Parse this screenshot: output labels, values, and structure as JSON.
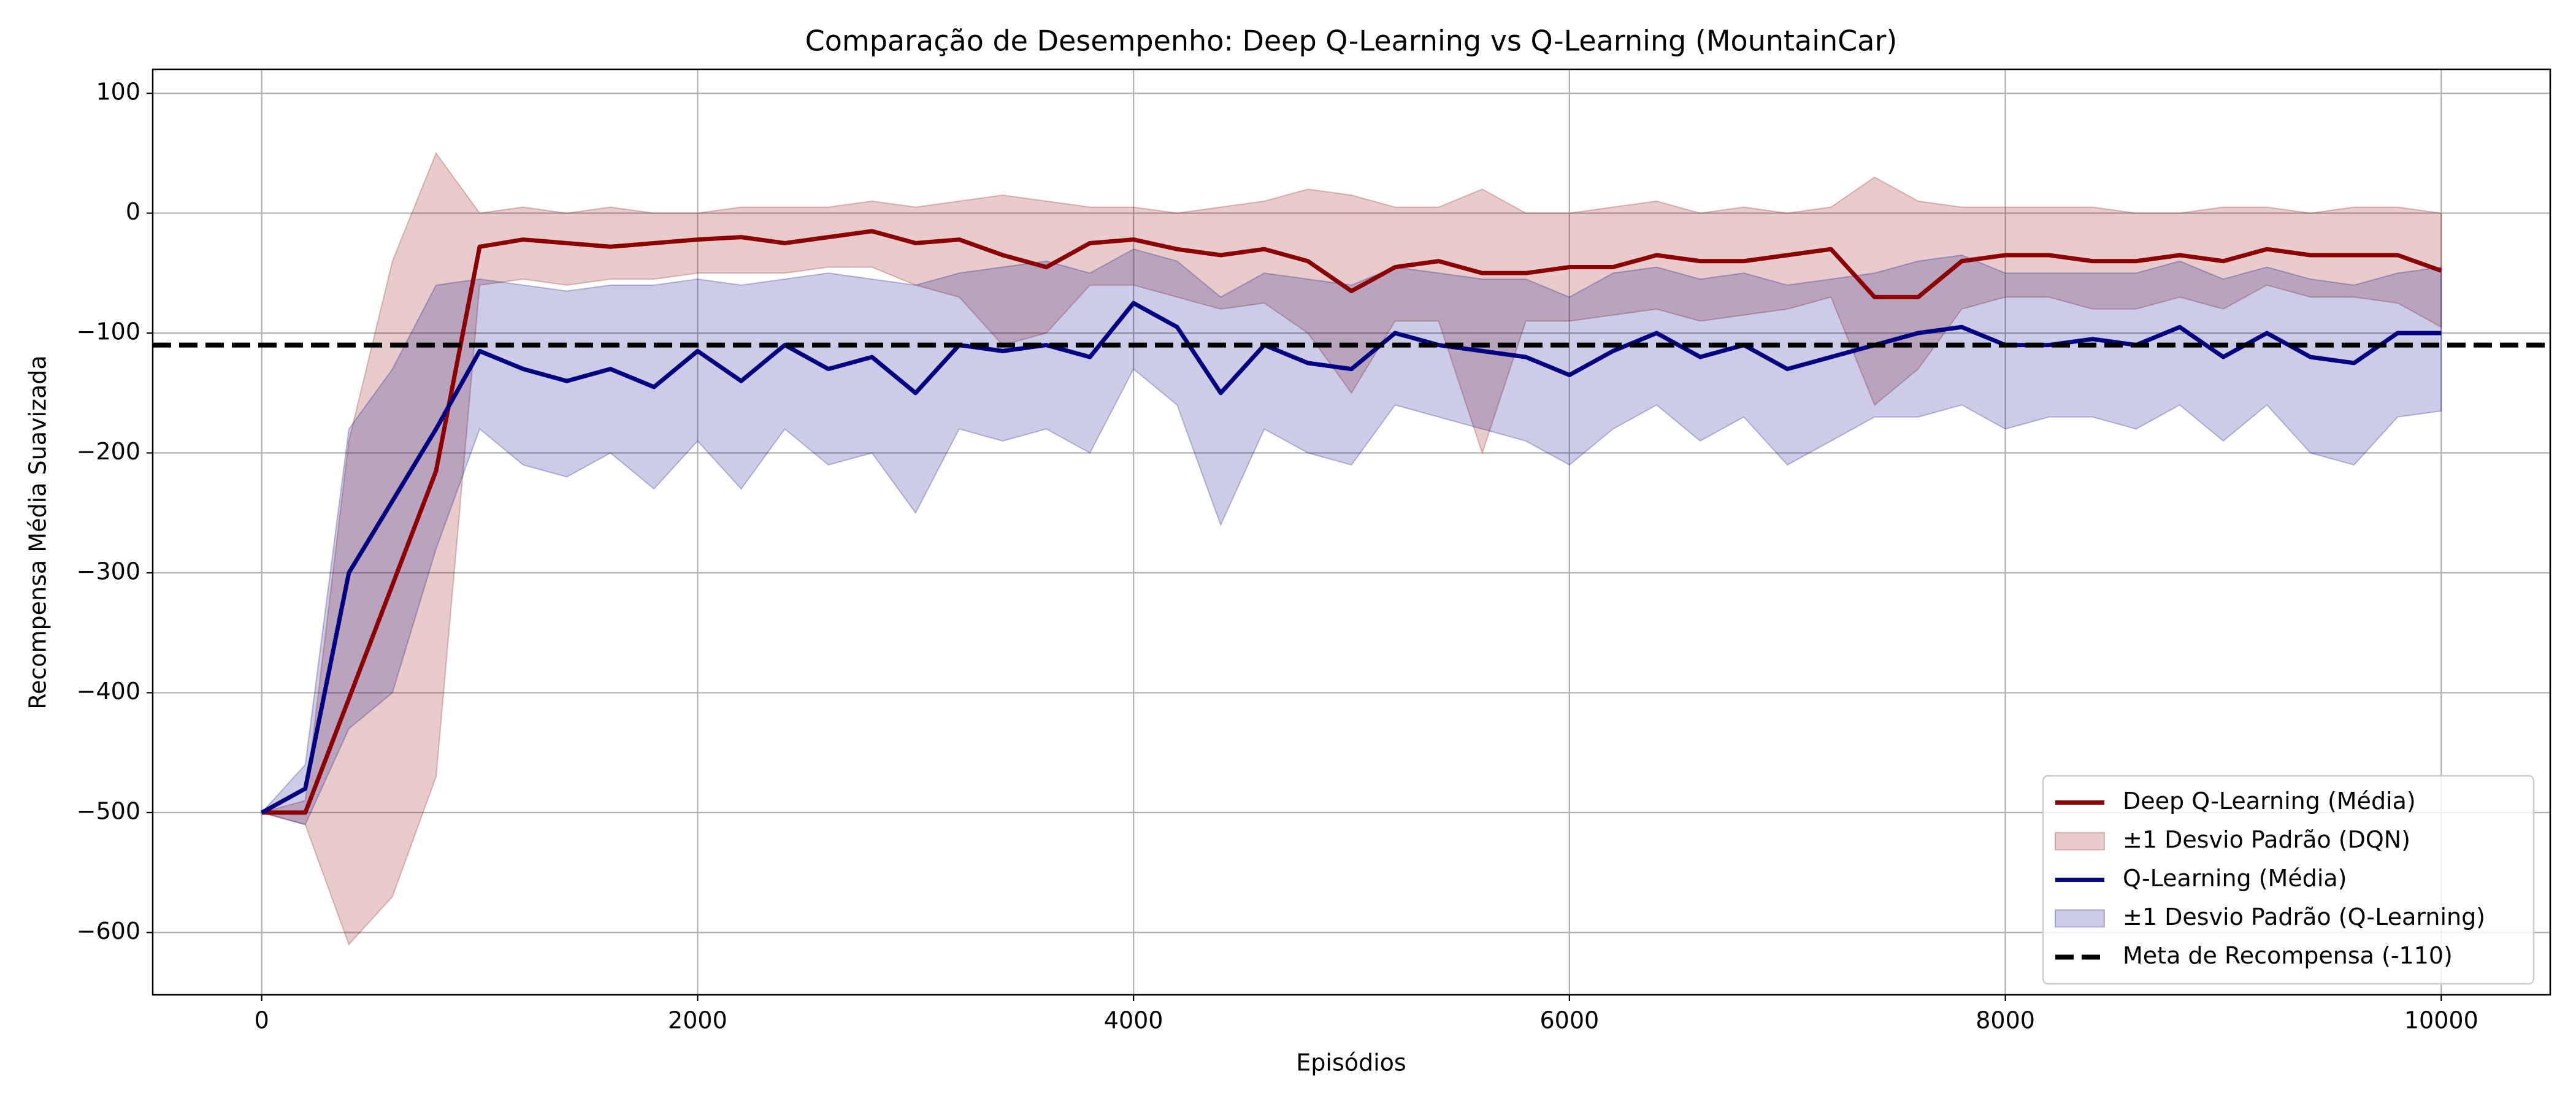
{
  "chart_data": {
    "type": "line",
    "title": "Comparação de Desempenho: Deep Q-Learning vs Q-Learning (MountainCar)",
    "x_label": "Episódios",
    "y_label": "Recompensa Média Suavizada",
    "x": [
      0,
      200,
      400,
      600,
      800,
      1000,
      1200,
      1400,
      1600,
      1800,
      2000,
      2200,
      2400,
      2600,
      2800,
      3000,
      3200,
      3400,
      3600,
      3800,
      4000,
      4200,
      4400,
      4600,
      4800,
      5000,
      5200,
      5400,
      5600,
      5800,
      6000,
      6200,
      6400,
      6600,
      6800,
      7000,
      7200,
      7400,
      7600,
      7800,
      8000,
      8200,
      8400,
      8600,
      8800,
      9000,
      9200,
      9400,
      9600,
      9800,
      10000
    ],
    "series": [
      {
        "name": "Deep Q-Learning (Média)",
        "kind": "line",
        "color": "#8b0000",
        "values": [
          -500,
          -500,
          -405,
          -310,
          -215,
          -28,
          -22,
          -25,
          -28,
          -25,
          -22,
          -20,
          -25,
          -20,
          -15,
          -25,
          -22,
          -35,
          -45,
          -25,
          -22,
          -30,
          -35,
          -30,
          -40,
          -65,
          -45,
          -40,
          -50,
          -50,
          -45,
          -45,
          -35,
          -40,
          -40,
          -35,
          -30,
          -70,
          -70,
          -40,
          -35,
          -35,
          -40,
          -40,
          -35,
          -40,
          -30,
          -35,
          -35,
          -35,
          -48
        ]
      },
      {
        "name": "±1 Desvio Padrão (DQN)",
        "kind": "band",
        "color": "#8b0000",
        "upper": [
          -500,
          -490,
          -190,
          -40,
          50,
          0,
          5,
          0,
          5,
          0,
          0,
          5,
          5,
          5,
          10,
          5,
          10,
          15,
          10,
          5,
          5,
          0,
          5,
          10,
          20,
          15,
          5,
          5,
          20,
          0,
          0,
          5,
          10,
          0,
          5,
          0,
          5,
          30,
          10,
          5,
          5,
          5,
          5,
          0,
          0,
          5,
          5,
          0,
          5,
          5,
          0
        ],
        "lower": [
          -500,
          -510,
          -610,
          -570,
          -470,
          -60,
          -55,
          -60,
          -55,
          -55,
          -50,
          -50,
          -50,
          -45,
          -45,
          -60,
          -70,
          -110,
          -100,
          -60,
          -60,
          -70,
          -80,
          -75,
          -100,
          -150,
          -90,
          -90,
          -200,
          -90,
          -90,
          -85,
          -80,
          -90,
          -85,
          -80,
          -70,
          -160,
          -130,
          -80,
          -70,
          -70,
          -80,
          -80,
          -70,
          -80,
          -60,
          -70,
          -70,
          -75,
          -95
        ]
      },
      {
        "name": "Q-Learning (Média)",
        "kind": "line",
        "color": "#000080",
        "values": [
          -500,
          -480,
          -300,
          -240,
          -180,
          -115,
          -130,
          -140,
          -130,
          -145,
          -115,
          -140,
          -110,
          -130,
          -120,
          -150,
          -110,
          -115,
          -110,
          -120,
          -75,
          -95,
          -150,
          -110,
          -125,
          -130,
          -100,
          -110,
          -115,
          -120,
          -135,
          -115,
          -100,
          -120,
          -110,
          -130,
          -120,
          -110,
          -100,
          -95,
          -110,
          -110,
          -105,
          -110,
          -95,
          -120,
          -100,
          -120,
          -125,
          -100,
          -100
        ]
      },
      {
        "name": "±1 Desvio Padrão (Q-Learning)",
        "kind": "band",
        "color": "#000080",
        "upper": [
          -500,
          -460,
          -180,
          -130,
          -60,
          -55,
          -60,
          -65,
          -60,
          -60,
          -55,
          -60,
          -55,
          -50,
          -55,
          -60,
          -50,
          -45,
          -40,
          -50,
          -30,
          -40,
          -70,
          -50,
          -55,
          -60,
          -45,
          -50,
          -55,
          -55,
          -70,
          -50,
          -45,
          -55,
          -50,
          -60,
          -55,
          -50,
          -40,
          -35,
          -50,
          -50,
          -50,
          -50,
          -40,
          -55,
          -45,
          -55,
          -60,
          -50,
          -45
        ],
        "lower": [
          -500,
          -510,
          -430,
          -400,
          -280,
          -180,
          -210,
          -220,
          -200,
          -230,
          -190,
          -230,
          -180,
          -210,
          -200,
          -250,
          -180,
          -190,
          -180,
          -200,
          -130,
          -160,
          -260,
          -180,
          -200,
          -210,
          -160,
          -170,
          -180,
          -190,
          -210,
          -180,
          -160,
          -190,
          -170,
          -210,
          -190,
          -170,
          -170,
          -160,
          -180,
          -170,
          -170,
          -180,
          -160,
          -190,
          -160,
          -200,
          -210,
          -170,
          -165
        ]
      },
      {
        "name": "Meta de Recompensa (-110)",
        "kind": "hline",
        "color": "#000000",
        "y": -110
      }
    ],
    "xlim": [
      -500,
      10500
    ],
    "ylim": [
      -652,
      120
    ],
    "xticks": [
      0,
      2000,
      4000,
      6000,
      8000,
      10000
    ],
    "yticks": [
      {
        "value": -600,
        "label": "−600"
      },
      {
        "value": -500,
        "label": "−500"
      },
      {
        "value": -400,
        "label": "−400"
      },
      {
        "value": -300,
        "label": "−300"
      },
      {
        "value": -200,
        "label": "−200"
      },
      {
        "value": -100,
        "label": "−100"
      },
      0,
      100
    ],
    "grid": true,
    "legend": "lower right"
  }
}
